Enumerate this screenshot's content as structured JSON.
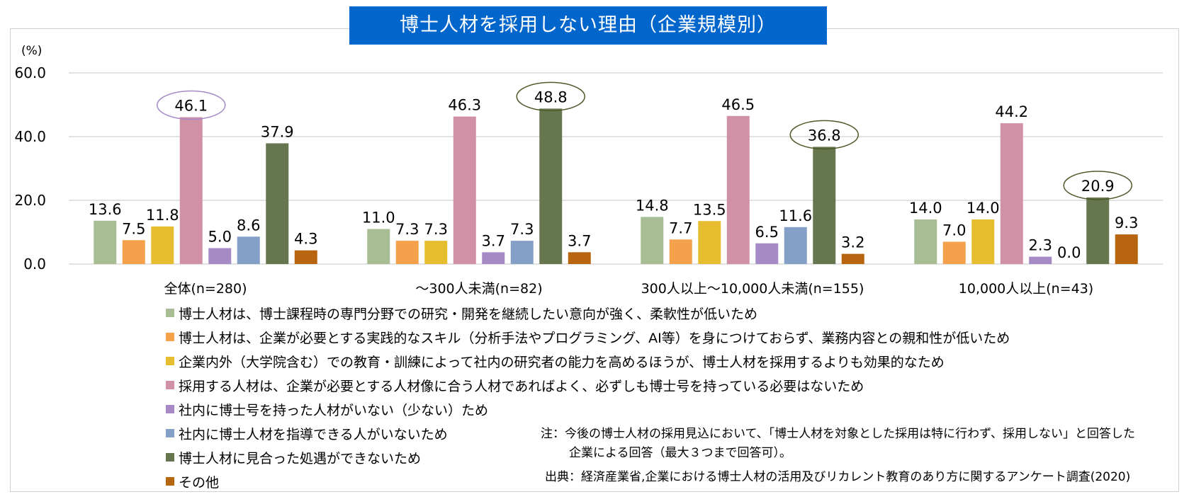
{
  "title": "博士人材を採用しない理由（企業規模別）",
  "chart_data": {
    "type": "bar",
    "unit_label": "(%)",
    "ylim": [
      0,
      60
    ],
    "yticks": [
      "60.0",
      "40.0",
      "20.0",
      "0.0"
    ],
    "ytick_values": [
      60,
      40,
      20,
      0
    ],
    "grid": true,
    "categories": [
      "全体(n=280)",
      "～300人未満(n=82)",
      "300人以上～10,000人未満(n=155)",
      "10,000人以上(n=43)"
    ],
    "series": [
      {
        "name": "博士人材は、博士課程時の専門分野での研究・開発を継続したい意向が強く、柔軟性が低いため",
        "color": "#a9bd95",
        "values": [
          13.6,
          11.0,
          14.8,
          14.0
        ],
        "labels": [
          "13.6",
          "11.0",
          "14.8",
          "14.0"
        ]
      },
      {
        "name": "博士人材は、企業が必要とする実践的なスキル（分析手法やプログラミング、AI等）を身につけておらず、業務内容との親和性が低いため",
        "color": "#f5a04a",
        "values": [
          7.5,
          7.3,
          7.7,
          7.0
        ],
        "labels": [
          "7.5",
          "7.3",
          "7.7",
          "7.0"
        ]
      },
      {
        "name": "企業内外（大学院含む）での教育・訓練によって社内の研究者の能力を高めるほうが、博士人材を採用するよりも効果的なため",
        "color": "#e6bd2e",
        "values": [
          11.8,
          7.3,
          13.5,
          14.0
        ],
        "labels": [
          "11.8",
          "7.3",
          "13.5",
          "14.0"
        ]
      },
      {
        "name": "採用する人材は、企業が必要とする人材像に合う人材であればよく、必ずしも博士号を持っている必要はないため",
        "color": "#d091a6",
        "values": [
          46.1,
          46.3,
          46.5,
          44.2
        ],
        "labels": [
          "46.1",
          "46.3",
          "46.5",
          "44.2"
        ]
      },
      {
        "name": "社内に博士号を持った人材がいない（少ない）ため",
        "color": "#a68ac6",
        "values": [
          5.0,
          3.7,
          6.5,
          2.3
        ],
        "labels": [
          "5.0",
          "3.7",
          "6.5",
          "2.3"
        ]
      },
      {
        "name": "社内に博士人材を指導できる人がいないため",
        "color": "#84a0c6",
        "values": [
          8.6,
          7.3,
          11.6,
          0.0
        ],
        "labels": [
          "8.6",
          "7.3",
          "11.6",
          "0.0"
        ]
      },
      {
        "name": "博士人材に見合った処遇ができないため",
        "color": "#66774f",
        "values": [
          37.9,
          48.8,
          36.8,
          20.9
        ],
        "labels": [
          "37.9",
          "48.8",
          "36.8",
          "20.9"
        ]
      },
      {
        "name": "その他",
        "color": "#b8650f",
        "values": [
          4.3,
          3.7,
          3.2,
          9.3
        ],
        "labels": [
          "4.3",
          "3.7",
          "3.2",
          "9.3"
        ]
      }
    ],
    "highlights": [
      {
        "category_index": 0,
        "series_index": 3,
        "color": "#a68ac6"
      },
      {
        "category_index": 1,
        "series_index": 6,
        "color": "#4f5a2a"
      },
      {
        "category_index": 2,
        "series_index": 6,
        "color": "#4f5a2a"
      },
      {
        "category_index": 3,
        "series_index": 6,
        "color": "#4f5a2a"
      }
    ]
  },
  "note": {
    "line1": "注：今後の博士人材の採用見込において、「博士人材を対象とした採用は特に行わず、採用しない」と回答した",
    "line2": "企業による回答（最大３つまで回答可）。"
  },
  "source": "出典：経済産業省,企業における博士人材の活用及びリカレント教育のあり方に関するアンケート調査(2020)"
}
